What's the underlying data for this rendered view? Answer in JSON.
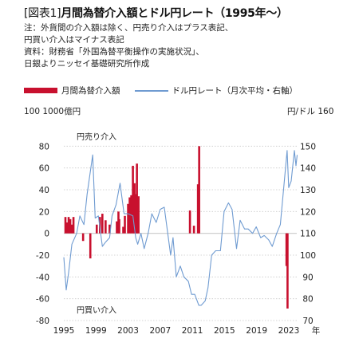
{
  "header": {
    "tag": "[図表1]",
    "title": "月間為替介入額とドル円レート（1995年〜）"
  },
  "notes": [
    "注：外貨間の介入額は除く、円売り介入はプラス表記、",
    "円買い介入はマイナス表記",
    "資料：財務省「外国為替平衡操作の実施状況」、",
    "日銀よりニッセイ基礎研究所作成"
  ],
  "legend": {
    "bar_label": "月間為替介入額",
    "line_label": "ドル円レート（月次平均・右軸）"
  },
  "colors": {
    "bar": "#c8102e",
    "line": "#6f9bd1",
    "grid": "#c9c9c9"
  },
  "chart_data": {
    "type": "bar+line",
    "left_axis_label": "100 1000億円",
    "right_axis_label": "円/ドル 160",
    "x_unit_label": "年",
    "ylim_left": [
      -80,
      100
    ],
    "ylim_right": [
      70,
      160
    ],
    "left_ticks": [
      "80",
      "60",
      "40",
      "20",
      "0",
      "-20",
      "-40",
      "-60",
      "-80"
    ],
    "right_ticks": [
      "150",
      "140",
      "130",
      "120",
      "110",
      "100",
      "90",
      "80",
      "70"
    ],
    "x_ticks": [
      "1995",
      "1999",
      "2003",
      "2007",
      "2011",
      "2015",
      "2019",
      "2023"
    ],
    "x_range": [
      1995,
      2024
    ],
    "annotations": {
      "upper": "円売り介入",
      "lower": "円買い介入"
    },
    "grid": "horizontal dotted",
    "bars": {
      "name": "月間為替介入額",
      "points": [
        [
          1995.2,
          15
        ],
        [
          1995.4,
          10
        ],
        [
          1995.6,
          15
        ],
        [
          1995.8,
          13
        ],
        [
          1996.0,
          8
        ],
        [
          1996.2,
          15
        ],
        [
          1997.4,
          -7
        ],
        [
          1998.3,
          -23
        ],
        [
          1999.1,
          8
        ],
        [
          1999.5,
          15
        ],
        [
          1999.8,
          18
        ],
        [
          2000.2,
          12
        ],
        [
          2000.7,
          8
        ],
        [
          2001.6,
          11
        ],
        [
          2001.8,
          20
        ],
        [
          2001.9,
          13
        ],
        [
          2002.4,
          6
        ],
        [
          2002.6,
          16
        ],
        [
          2003.0,
          27
        ],
        [
          2003.2,
          33
        ],
        [
          2003.4,
          35
        ],
        [
          2003.6,
          62
        ],
        [
          2003.8,
          46
        ],
        [
          2003.95,
          36
        ],
        [
          2004.1,
          64
        ],
        [
          2004.3,
          34
        ],
        [
          2010.7,
          21
        ],
        [
          2011.2,
          7
        ],
        [
          2011.7,
          45
        ],
        [
          2011.85,
          80
        ]
      ],
      "extra": [
        [
          2022.72,
          -30
        ],
        [
          2022.85,
          -69
        ]
      ]
    },
    "line": {
      "name": "ドル円レート（月次平均・右軸）",
      "points": [
        [
          1995.0,
          99
        ],
        [
          1995.3,
          84
        ],
        [
          1995.6,
          92
        ],
        [
          1996.0,
          105
        ],
        [
          1996.6,
          110
        ],
        [
          1997.0,
          118
        ],
        [
          1997.5,
          114
        ],
        [
          1997.9,
          128
        ],
        [
          1998.6,
          146
        ],
        [
          1998.9,
          117
        ],
        [
          1999.3,
          118
        ],
        [
          1999.8,
          104
        ],
        [
          2000.2,
          106
        ],
        [
          2000.7,
          108
        ],
        [
          2001.0,
          118
        ],
        [
          2001.5,
          123
        ],
        [
          2002.0,
          133
        ],
        [
          2002.5,
          119
        ],
        [
          2003.0,
          119
        ],
        [
          2003.6,
          118
        ],
        [
          2003.95,
          108
        ],
        [
          2004.2,
          105
        ],
        [
          2004.6,
          110
        ],
        [
          2005.0,
          103
        ],
        [
          2005.5,
          110
        ],
        [
          2005.95,
          119
        ],
        [
          2006.5,
          115
        ],
        [
          2007.0,
          121
        ],
        [
          2007.5,
          122
        ],
        [
          2007.9,
          111
        ],
        [
          2008.3,
          100
        ],
        [
          2008.6,
          108
        ],
        [
          2009.0,
          90
        ],
        [
          2009.5,
          95
        ],
        [
          2009.95,
          90
        ],
        [
          2010.5,
          88
        ],
        [
          2010.9,
          82
        ],
        [
          2011.3,
          82
        ],
        [
          2011.8,
          77
        ],
        [
          2012.1,
          77
        ],
        [
          2012.6,
          79
        ],
        [
          2012.95,
          85
        ],
        [
          2013.4,
          100
        ],
        [
          2013.9,
          102
        ],
        [
          2014.5,
          102
        ],
        [
          2014.95,
          120
        ],
        [
          2015.5,
          124
        ],
        [
          2015.95,
          121
        ],
        [
          2016.5,
          103
        ],
        [
          2016.95,
          116
        ],
        [
          2017.5,
          112
        ],
        [
          2017.95,
          112
        ],
        [
          2018.5,
          110
        ],
        [
          2018.95,
          113
        ],
        [
          2019.5,
          108
        ],
        [
          2019.95,
          109
        ],
        [
          2020.5,
          107
        ],
        [
          2020.95,
          104
        ],
        [
          2021.5,
          110
        ],
        [
          2021.95,
          114
        ],
        [
          2022.3,
          128
        ],
        [
          2022.8,
          148
        ],
        [
          2023.0,
          131
        ],
        [
          2023.3,
          134
        ],
        [
          2023.7,
          148
        ],
        [
          2023.9,
          141
        ],
        [
          2024.05,
          146
        ]
      ]
    }
  }
}
